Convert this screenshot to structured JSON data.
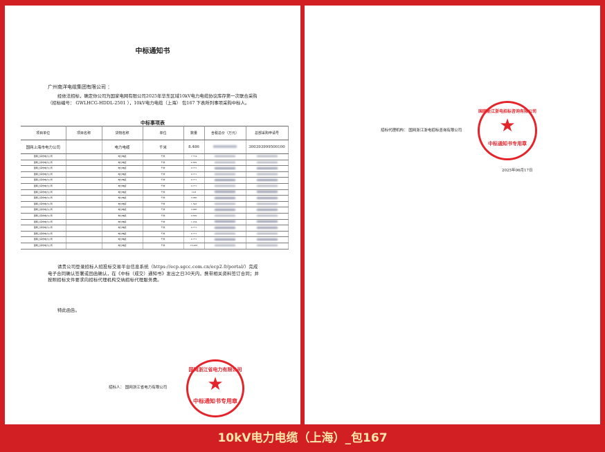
{
  "page1": {
    "title": "中标通知书",
    "addressee": "广州南洋电缆集团有限公司 ：",
    "paragraph1": "经依法招标，确定你公司为国家电网有限公司2025年华东区域10kV电力电缆协议库存第一次联合采购（招标编号： GWLHCG-HDDL-2501 ），10kV电力电缆（上海） 包167 下表所列事项采购中标人。",
    "table_title": "中标事项表",
    "table": {
      "headers": [
        "项目单位",
        "项目名称",
        "货物名称",
        "单位",
        "数量",
        "含税总价（万元）",
        "总部采购申请号"
      ],
      "first_row": {
        "unit": "国网上海市电力公司",
        "project": "",
        "goods": "电力电缆",
        "measure": "千米",
        "quantity": "8.486",
        "app_no": "300393999500100"
      },
      "rows": [
        {
          "unit": "国网上海市电力公司",
          "goods": "电力电缆",
          "measure": "千米",
          "quantity": "7.714"
        },
        {
          "unit": "国网上海市电力公司",
          "goods": "电力电缆",
          "measure": "千米",
          "quantity": "4.659"
        },
        {
          "unit": "国网上海市电力公司",
          "goods": "电力电缆",
          "measure": "千米",
          "quantity": "0.771"
        },
        {
          "unit": "国网上海市电力公司",
          "goods": "电力电缆",
          "measure": "千米",
          "quantity": "0.771"
        },
        {
          "unit": "国网上海市电力公司",
          "goods": "电力电缆",
          "measure": "千米",
          "quantity": "0.771"
        },
        {
          "unit": "国网上海市电力公司",
          "goods": "电力电缆",
          "measure": "千米",
          "quantity": "0.771"
        },
        {
          "unit": "国网上海市电力公司",
          "goods": "电力电缆",
          "measure": "千米",
          "quantity": "10.8"
        },
        {
          "unit": "国网上海市电力公司",
          "goods": "电力电缆",
          "measure": "千米",
          "quantity": "3.086"
        },
        {
          "unit": "国网上海市电力公司",
          "goods": "电力电缆",
          "measure": "千米",
          "quantity": "1.543"
        },
        {
          "unit": "国网上海市电力公司",
          "goods": "电力电缆",
          "measure": "千米",
          "quantity": "3.086"
        },
        {
          "unit": "国网上海市电力公司",
          "goods": "电力电缆",
          "measure": "千米",
          "quantity": "0.309"
        },
        {
          "unit": "国网上海市电力公司",
          "goods": "电力电缆",
          "measure": "千米",
          "quantity": "1.234"
        },
        {
          "unit": "国网上海市电力公司",
          "goods": "电力电缆",
          "measure": "千米",
          "quantity": "0.771"
        },
        {
          "unit": "国网上海市电力公司",
          "goods": "电力电缆",
          "measure": "千米",
          "quantity": "0.771"
        },
        {
          "unit": "国网上海市电力公司",
          "goods": "电力电缆",
          "measure": "千米",
          "quantity": "0.771"
        },
        {
          "unit": "国网上海市电力公司",
          "goods": "电力电缆",
          "measure": "千米",
          "quantity": "16.438"
        }
      ]
    },
    "paragraph2": "请贵公司登录招标人招投标交易平台信息系统（https://ecp.sgcc.com.cn/ecp2.0/portal/）完成电子合同确认签署或回函确认，在《中标（成交）通知书》发出之日30天内，携带相关资料签订合同；并按照招标文件要求向招标代理机构交纳招标代理服务费。",
    "closing": "特此函告。",
    "signature": "招标人： 国网浙江省电力有限公司",
    "seal": {
      "ring": "国网浙江省电力有限公司",
      "center": "中标通知书专用章"
    }
  },
  "page2": {
    "signature": "招标代理机构： 国网浙江浙电招标咨询有限公司",
    "date": "2025年06月17日",
    "seal": {
      "ring": "国网浙江浙电招标咨询有限公司",
      "center": "中标通知书专用章"
    }
  },
  "caption": "10kV电力电缆（上海）_包167",
  "colors": {
    "background": "#d11f24",
    "caption": "#fde6a8",
    "seal": "#e3242b"
  }
}
